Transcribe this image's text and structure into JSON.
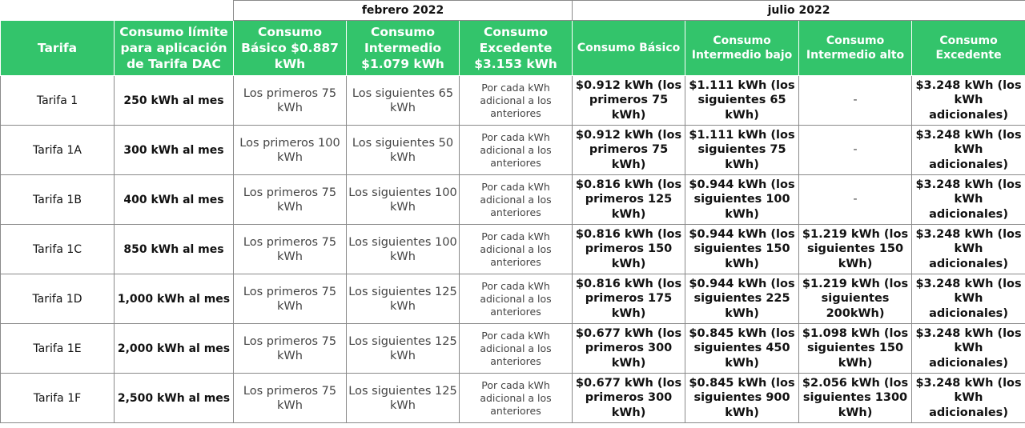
{
  "periods": {
    "feb": "febrero 2022",
    "jul": "julio 2022"
  },
  "headers": {
    "tarifa": "Tarifa",
    "limite": "Consumo límite para aplicación de Tarifa DAC",
    "feb_basico": "Consumo Básico $0.887 kWh",
    "feb_intermedio": "Consumo Intermedio $1.079 kWh",
    "feb_excedente": "Consumo Excedente $3.153 kWh",
    "jul_basico": "Consumo Básico",
    "jul_int_bajo": "Consumo Intermedio bajo",
    "jul_int_alto": "Consumo Intermedio alto",
    "jul_excedente": "Consumo Excedente"
  },
  "rows": [
    {
      "tarifa": "Tarifa 1",
      "limite": "250 kWh al mes",
      "feb_basico": "Los primeros 75 kWh",
      "feb_intermedio": "Los siguientes 65 kWh",
      "feb_excedente": "Por cada kWh adicional a los anteriores",
      "jul_basico": "$0.912 kWh (los primeros 75 kWh)",
      "jul_int_bajo": "$1.111 kWh (los siguientes 65 kWh)",
      "jul_int_alto": "-",
      "jul_excedente": "$3.248 kWh (los kWh adicionales)"
    },
    {
      "tarifa": "Tarifa 1A",
      "limite": "300 kWh al mes",
      "feb_basico": "Los primeros 100 kWh",
      "feb_intermedio": "Los siguientes 50 kWh",
      "feb_excedente": "Por cada kWh adicional a los anteriores",
      "jul_basico": "$0.912 kWh (los primeros 75 kWh)",
      "jul_int_bajo": "$1.111 kWh (los siguientes 75 kWh)",
      "jul_int_alto": "-",
      "jul_excedente": "$3.248 kWh (los kWh adicionales)"
    },
    {
      "tarifa": "Tarifa 1B",
      "limite": "400 kWh al mes",
      "feb_basico": "Los primeros 75 kWh",
      "feb_intermedio": "Los siguientes 100 kWh",
      "feb_excedente": "Por cada kWh adicional a los anteriores",
      "jul_basico": "$0.816 kWh (los primeros 125 kWh)",
      "jul_int_bajo": "$0.944 kWh (los siguientes 100 kWh)",
      "jul_int_alto": "-",
      "jul_excedente": "$3.248 kWh (los kWh adicionales)"
    },
    {
      "tarifa": "Tarifa 1C",
      "limite": "850 kWh al mes",
      "feb_basico": "Los primeros 75 kWh",
      "feb_intermedio": "Los siguientes 100 kWh",
      "feb_excedente": "Por cada kWh adicional a los anteriores",
      "jul_basico": "$0.816 kWh (los primeros 150 kWh)",
      "jul_int_bajo": "$0.944 kWh (los siguientes 150 kWh)",
      "jul_int_alto": "$1.219 kWh (los siguientes 150 kWh)",
      "jul_excedente": "$3.248 kWh (los kWh adicionales)"
    },
    {
      "tarifa": "Tarifa 1D",
      "limite": "1,000 kWh al mes",
      "feb_basico": "Los primeros 75 kWh",
      "feb_intermedio": "Los siguientes 125 kWh",
      "feb_excedente": "Por cada kWh adicional a los anteriores",
      "jul_basico": "$0.816 kWh (los primeros 175 kWh)",
      "jul_int_bajo": "$0.944 kWh (los siguientes 225 kWh)",
      "jul_int_alto": "$1.219 kWh (los siguientes 200kWh)",
      "jul_excedente": "$3.248 kWh (los kWh adicionales)"
    },
    {
      "tarifa": "Tarifa 1E",
      "limite": "2,000 kWh al mes",
      "feb_basico": "Los primeros 75 kWh",
      "feb_intermedio": "Los siguientes 125 kWh",
      "feb_excedente": "Por cada kWh adicional a los anteriores",
      "jul_basico": "$0.677 kWh (los primeros 300 kWh)",
      "jul_int_bajo": "$0.845 kWh (los siguientes 450 kWh)",
      "jul_int_alto": "$1.098 kWh (los siguientes 150 kWh)",
      "jul_excedente": "$3.248 kWh (los kWh adicionales)"
    },
    {
      "tarifa": "Tarifa 1F",
      "limite": "2,500 kWh al mes",
      "feb_basico": "Los primeros 75 kWh",
      "feb_intermedio": "Los siguientes 125 kWh",
      "feb_excedente": "Por cada kWh adicional a los anteriores",
      "jul_basico": "$0.677 kWh (los primeros 300 kWh)",
      "jul_int_bajo": "$0.845 kWh (los siguientes 900 kWh)",
      "jul_int_alto": "$2.056 kWh (los siguientes 1300 kWh)",
      "jul_excedente": "$3.248 kWh (los kWh adicionales)"
    }
  ],
  "colors": {
    "header_green": "#33c46b",
    "header_text": "#ffffff",
    "border": "#8a8a8a"
  }
}
